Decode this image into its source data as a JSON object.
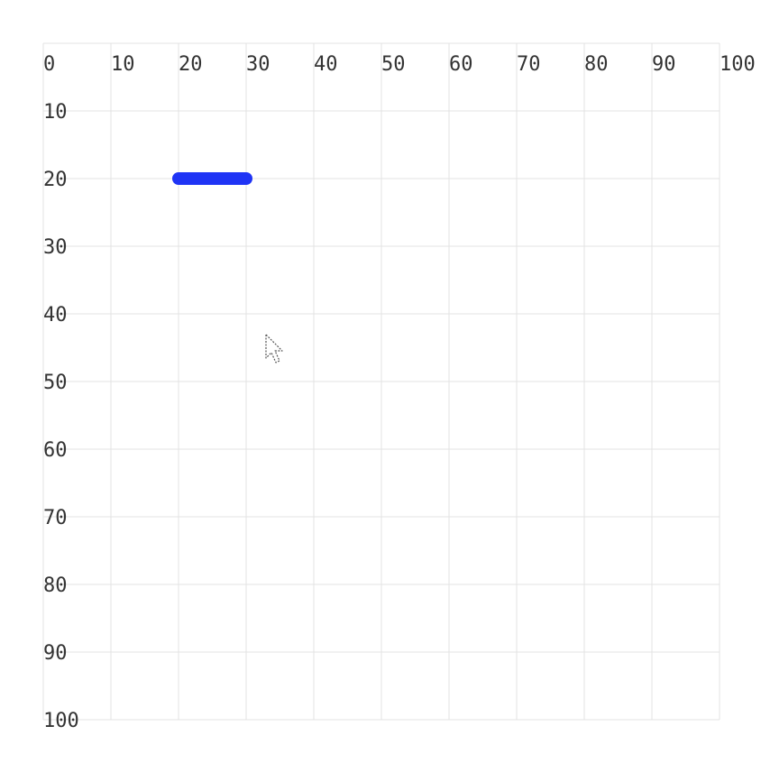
{
  "grid": {
    "range": [
      0,
      100
    ],
    "step": 10,
    "x_ticks": [
      "0",
      "10",
      "20",
      "30",
      "40",
      "50",
      "60",
      "70",
      "80",
      "90",
      "100"
    ],
    "y_ticks": [
      "10",
      "20",
      "30",
      "40",
      "50",
      "60",
      "70",
      "80",
      "90",
      "100"
    ],
    "line_color": "#e3e3e3",
    "label_color": "#333333"
  },
  "stroke": {
    "from": [
      20,
      20
    ],
    "to": [
      30,
      20
    ],
    "color": "#1f34f5"
  },
  "cursor": {
    "icon": "arrow-pointer-icon",
    "position": [
      33,
      44
    ]
  }
}
